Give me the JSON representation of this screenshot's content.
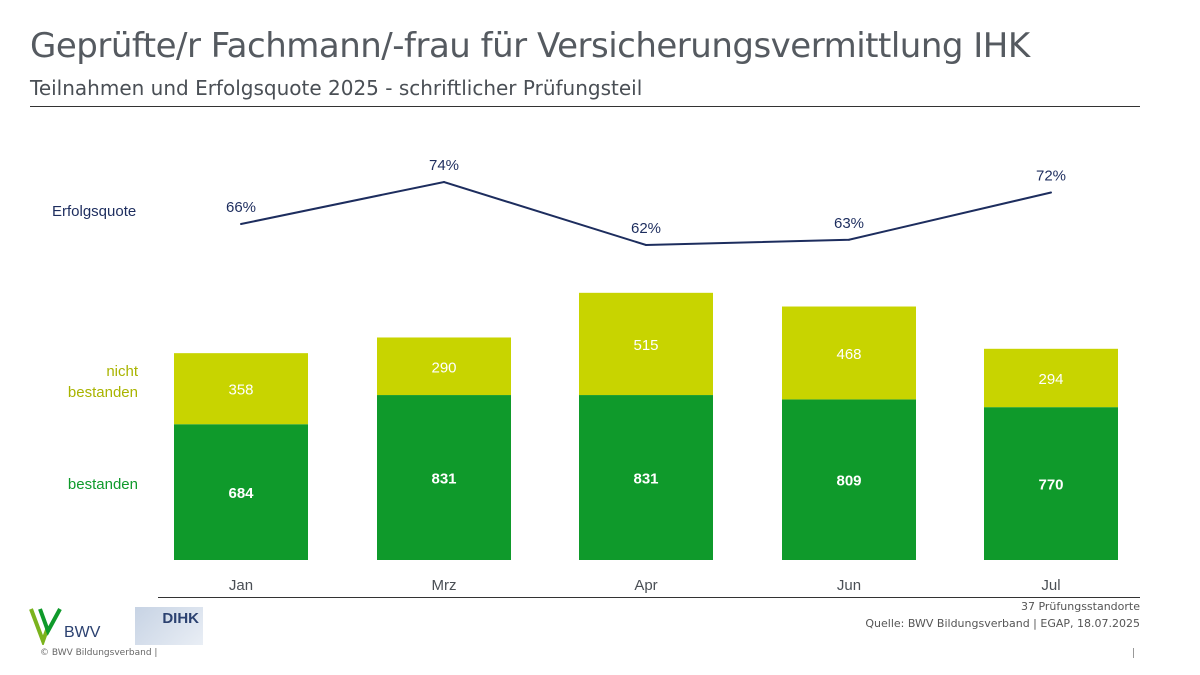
{
  "header": {
    "title": "Geprüfte/r Fachmann/-frau für Versicherungsvermittlung IHK",
    "subtitle": "Teilnahmen und Erfolgsquote 2025 - schriftlicher Prüfungsteil"
  },
  "chart_data": {
    "type": "bar",
    "stacked": true,
    "categories": [
      "Jan",
      "Mrz",
      "Apr",
      "Jun",
      "Jul"
    ],
    "series": [
      {
        "name": "bestanden",
        "values": [
          684,
          831,
          831,
          809,
          770
        ],
        "color": "#0f9a2b"
      },
      {
        "name": "nicht bestanden",
        "values": [
          358,
          290,
          515,
          468,
          294
        ],
        "color": "#c8d400"
      }
    ],
    "line": {
      "name": "Erfolgsquote",
      "values": [
        66,
        74,
        62,
        63,
        72
      ],
      "labels": [
        "66%",
        "74%",
        "62%",
        "63%",
        "72%"
      ],
      "color": "#1d2d5e"
    },
    "legend": {
      "line_label": "Erfolgsquote",
      "not_passed_label_line1": "nicht",
      "not_passed_label_line2": "bestanden",
      "passed_label": "bestanden"
    },
    "ylim": [
      0,
      1400
    ],
    "grid": false,
    "legend_placement": "left"
  },
  "footer": {
    "locations": "37 Prüfungsstandorte",
    "source": "Quelle: BWV Bildungsverband | EGAP, 18.07.2025",
    "copyright": "© BWV Bildungsverband |",
    "logo_bwv": "BWV",
    "logo_dihk": "DIHK"
  }
}
